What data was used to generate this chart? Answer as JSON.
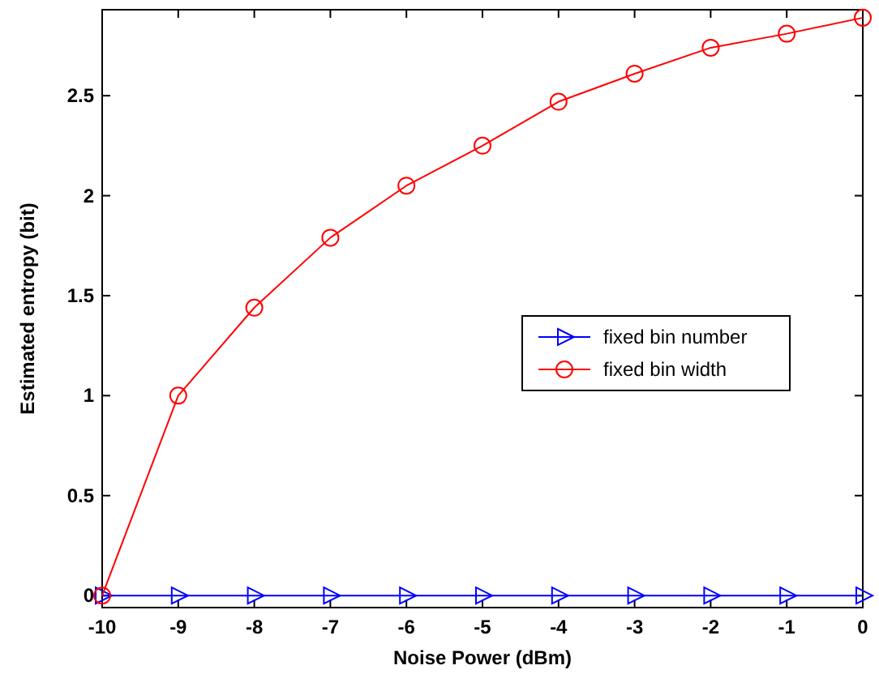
{
  "chart_data": {
    "type": "line",
    "xlabel": "Noise Power (dBm)",
    "ylabel": "Estimated entropy (bit)",
    "x": [
      -10,
      -9,
      -8,
      -7,
      -6,
      -5,
      -4,
      -3,
      -2,
      -1,
      0
    ],
    "series": [
      {
        "name": "fixed bin number",
        "color": "#0000ff",
        "marker": "triangle",
        "values": [
          0,
          0,
          0,
          0,
          0,
          0,
          0,
          0,
          0,
          0,
          0
        ]
      },
      {
        "name": "fixed bin width",
        "color": "#ff0000",
        "marker": "circle",
        "values": [
          0,
          1.0,
          1.44,
          1.79,
          2.05,
          2.25,
          2.47,
          2.61,
          2.74,
          2.81,
          2.89
        ]
      }
    ],
    "xlim": [
      -10,
      0
    ],
    "xticks": [
      -10,
      -9,
      -8,
      -7,
      -6,
      -5,
      -4,
      -3,
      -2,
      -1,
      0
    ],
    "ylim": [
      -0.06,
      2.93
    ],
    "yticks": [
      0,
      0.5,
      1,
      1.5,
      2,
      2.5
    ],
    "grid": false,
    "legend": "right",
    "line_style": "solid"
  }
}
